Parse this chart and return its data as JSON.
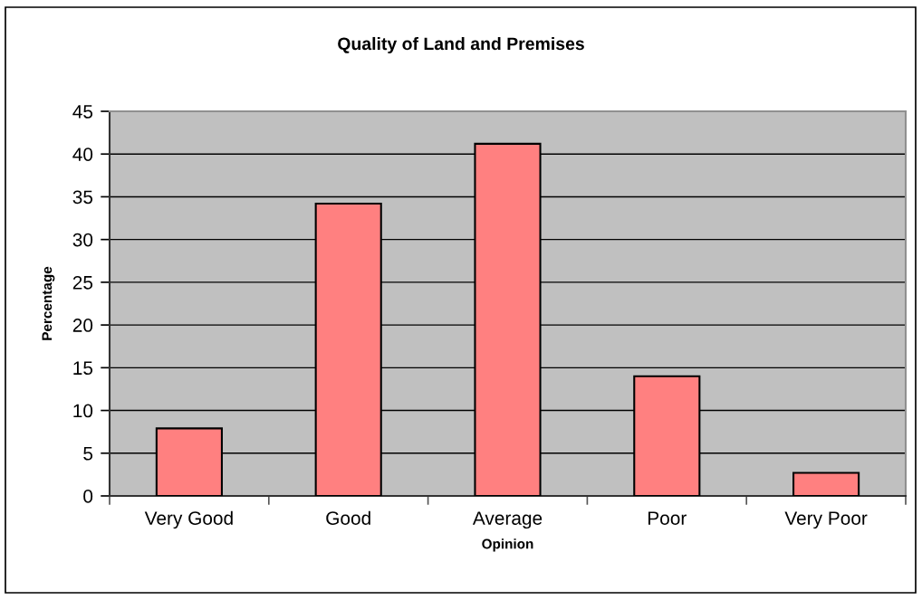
{
  "chart_data": {
    "type": "bar",
    "title": "Quality of Land and Premises",
    "xlabel": "Opinion",
    "ylabel": "Percentage",
    "categories": [
      "Very Good",
      "Good",
      "Average",
      "Poor",
      "Very Poor"
    ],
    "values": [
      7.9,
      34.2,
      41.2,
      14.0,
      2.7
    ],
    "color": "#ff8080",
    "ylim": [
      0,
      45
    ],
    "yticks": [
      0,
      5,
      10,
      15,
      20,
      25,
      30,
      35,
      40,
      45
    ],
    "grid": "y",
    "legend": false
  }
}
